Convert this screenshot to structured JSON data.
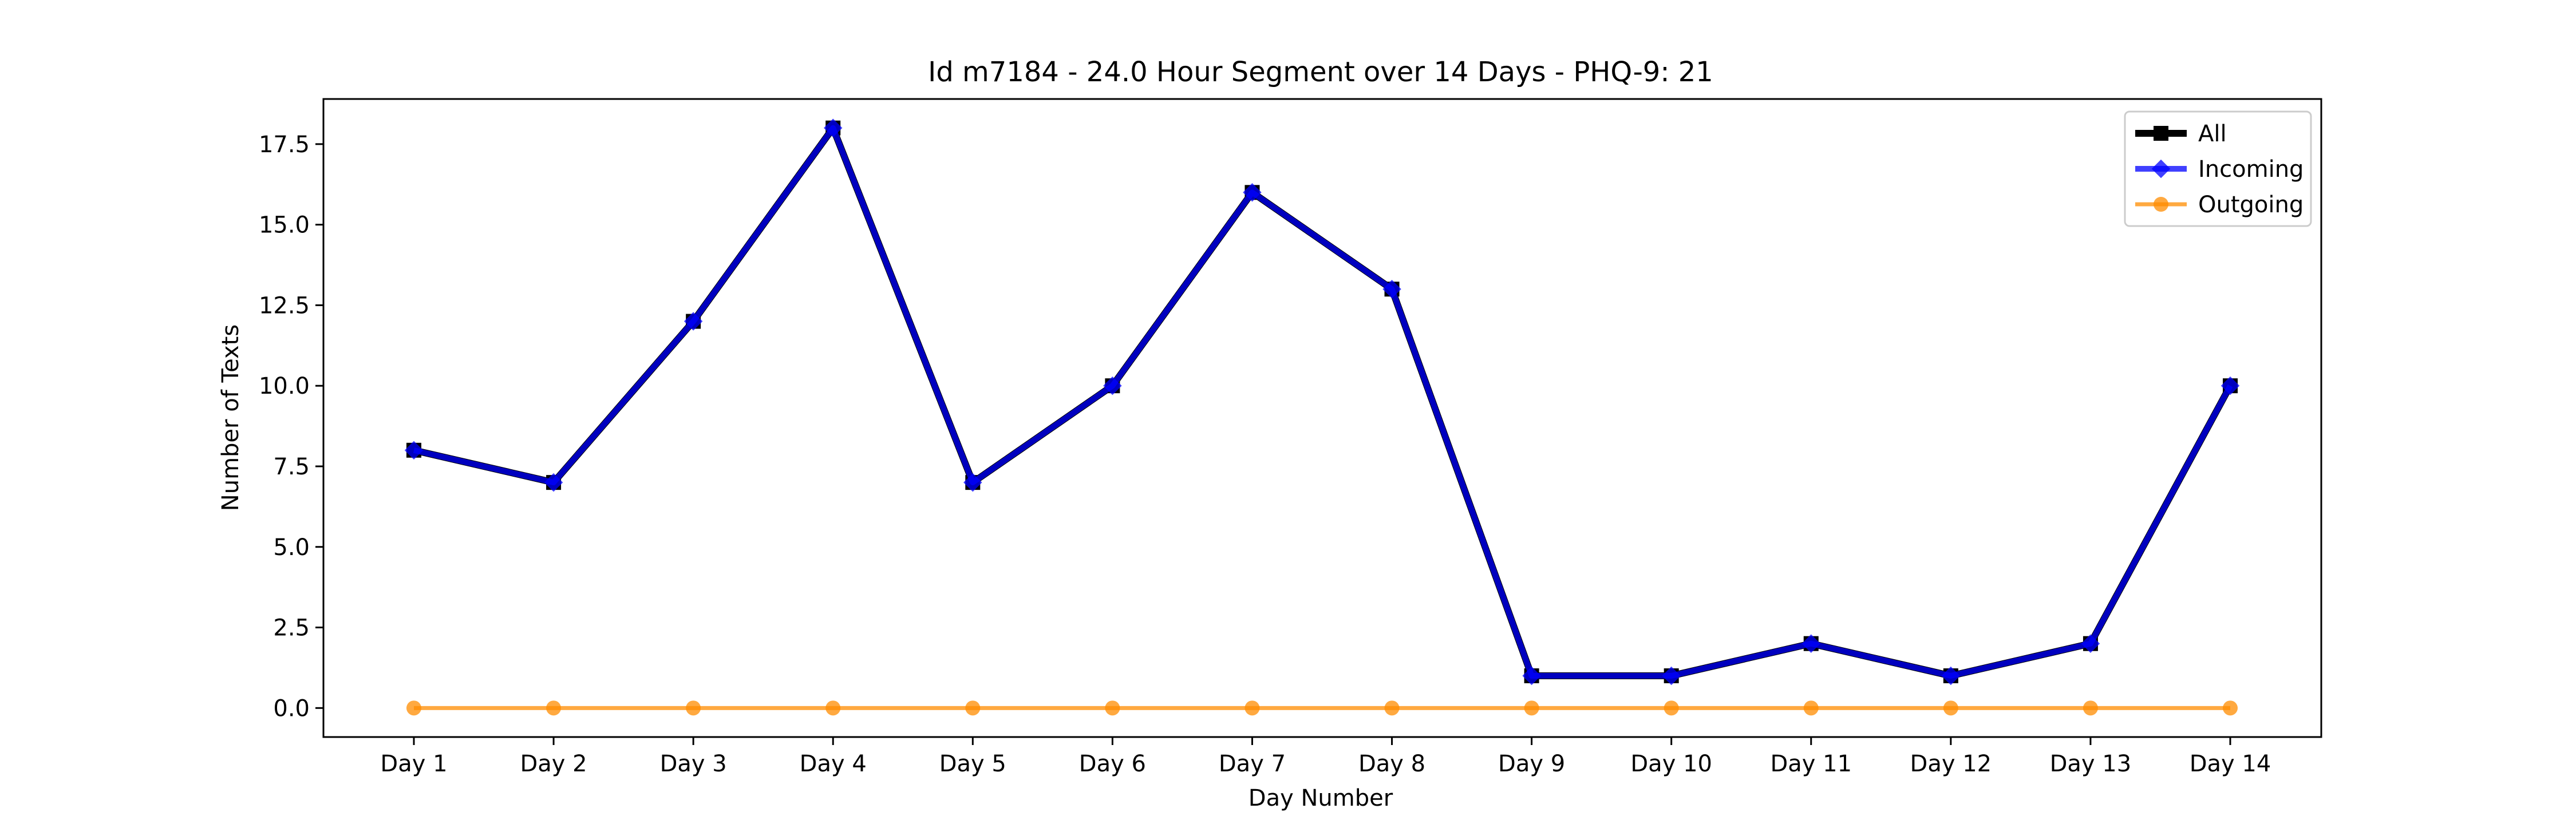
{
  "chart_data": {
    "type": "line",
    "title": "Id m7184 - 24.0 Hour Segment over 14 Days - PHQ-9: 21",
    "xlabel": "Day Number",
    "ylabel": "Number of Texts",
    "categories": [
      "Day 1",
      "Day 2",
      "Day 3",
      "Day 4",
      "Day 5",
      "Day 6",
      "Day 7",
      "Day 8",
      "Day 9",
      "Day 10",
      "Day 11",
      "Day 12",
      "Day 13",
      "Day 14"
    ],
    "ylim": [
      -0.9,
      18.9
    ],
    "yticks": [
      0.0,
      2.5,
      5.0,
      7.5,
      10.0,
      12.5,
      15.0,
      17.5
    ],
    "ytick_labels": [
      "0.0",
      "2.5",
      "5.0",
      "7.5",
      "10.0",
      "12.5",
      "15.0",
      "17.5"
    ],
    "grid": false,
    "legend_position": "top-right",
    "series": [
      {
        "name": "All",
        "color": "#000000",
        "marker": "square",
        "values": [
          8,
          7,
          12,
          18,
          7,
          10,
          16,
          13,
          1,
          1,
          2,
          1,
          2,
          10
        ]
      },
      {
        "name": "Incoming",
        "color": "#0000ff",
        "marker": "diamond",
        "values": [
          8,
          7,
          12,
          18,
          7,
          10,
          16,
          13,
          1,
          1,
          2,
          1,
          2,
          10
        ]
      },
      {
        "name": "Outgoing",
        "color": "#ff8c00",
        "marker": "circle",
        "values": [
          0,
          0,
          0,
          0,
          0,
          0,
          0,
          0,
          0,
          0,
          0,
          0,
          0,
          0
        ]
      }
    ]
  }
}
